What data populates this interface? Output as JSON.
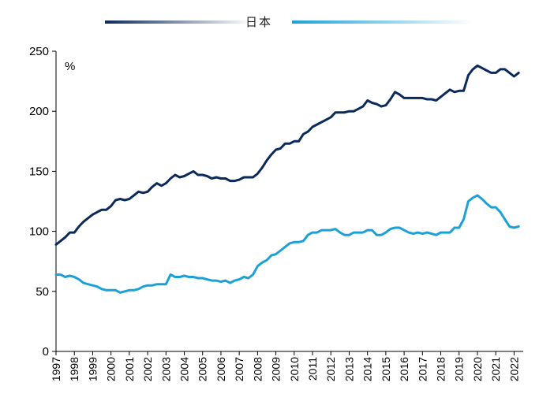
{
  "chart_data": {
    "type": "line",
    "ylim": [
      0,
      250
    ],
    "xlim": [
      1997.0,
      2022.5
    ],
    "y_ticks": [
      "0",
      "50",
      "100",
      "150",
      "200",
      "250"
    ],
    "x_ticks": [
      "1997",
      "1998",
      "1999",
      "2000",
      "2001",
      "2002",
      "2003",
      "2004",
      "2005",
      "2006",
      "2007",
      "2008",
      "2009",
      "2010",
      "2011",
      "2012",
      "2013",
      "2014",
      "2015",
      "2016",
      "2017",
      "2018",
      "2019",
      "2020",
      "2021",
      "2022"
    ],
    "unit_label": "%",
    "legend_position": "top-center",
    "grid": false,
    "series": [
      {
        "name": "",
        "color": "#0b2a5c",
        "points": [
          [
            1997.0,
            89
          ],
          [
            1997.25,
            92
          ],
          [
            1997.5,
            95
          ],
          [
            1997.75,
            99
          ],
          [
            1998.0,
            99
          ],
          [
            1998.25,
            104
          ],
          [
            1998.5,
            108
          ],
          [
            1998.75,
            111
          ],
          [
            1999.0,
            114
          ],
          [
            1999.25,
            116
          ],
          [
            1999.5,
            118
          ],
          [
            1999.75,
            118
          ],
          [
            2000.0,
            121
          ],
          [
            2000.25,
            126
          ],
          [
            2000.5,
            127
          ],
          [
            2000.75,
            126
          ],
          [
            2001.0,
            127
          ],
          [
            2001.25,
            130
          ],
          [
            2001.5,
            133
          ],
          [
            2001.75,
            132
          ],
          [
            2002.0,
            133
          ],
          [
            2002.25,
            137
          ],
          [
            2002.5,
            140
          ],
          [
            2002.75,
            138
          ],
          [
            2003.0,
            140
          ],
          [
            2003.25,
            144
          ],
          [
            2003.5,
            147
          ],
          [
            2003.75,
            145
          ],
          [
            2004.0,
            146
          ],
          [
            2004.25,
            148
          ],
          [
            2004.5,
            150
          ],
          [
            2004.75,
            147
          ],
          [
            2005.0,
            147
          ],
          [
            2005.25,
            146
          ],
          [
            2005.5,
            144
          ],
          [
            2005.75,
            145
          ],
          [
            2006.0,
            144
          ],
          [
            2006.25,
            144
          ],
          [
            2006.5,
            142
          ],
          [
            2006.75,
            142
          ],
          [
            2007.0,
            143
          ],
          [
            2007.25,
            145
          ],
          [
            2007.5,
            145
          ],
          [
            2007.75,
            145
          ],
          [
            2008.0,
            148
          ],
          [
            2008.25,
            153
          ],
          [
            2008.5,
            159
          ],
          [
            2008.75,
            164
          ],
          [
            2009.0,
            168
          ],
          [
            2009.25,
            169
          ],
          [
            2009.5,
            173
          ],
          [
            2009.75,
            173
          ],
          [
            2010.0,
            175
          ],
          [
            2010.25,
            175
          ],
          [
            2010.5,
            181
          ],
          [
            2010.75,
            183
          ],
          [
            2011.0,
            187
          ],
          [
            2011.25,
            189
          ],
          [
            2011.5,
            191
          ],
          [
            2011.75,
            193
          ],
          [
            2012.0,
            195
          ],
          [
            2012.25,
            199
          ],
          [
            2012.5,
            199
          ],
          [
            2012.75,
            199
          ],
          [
            2013.0,
            200
          ],
          [
            2013.25,
            200
          ],
          [
            2013.5,
            202
          ],
          [
            2013.75,
            204
          ],
          [
            2014.0,
            209
          ],
          [
            2014.25,
            207
          ],
          [
            2014.5,
            206
          ],
          [
            2014.75,
            204
          ],
          [
            2015.0,
            205
          ],
          [
            2015.25,
            210
          ],
          [
            2015.5,
            216
          ],
          [
            2015.75,
            214
          ],
          [
            2016.0,
            211
          ],
          [
            2016.25,
            211
          ],
          [
            2016.5,
            211
          ],
          [
            2016.75,
            211
          ],
          [
            2017.0,
            211
          ],
          [
            2017.25,
            210
          ],
          [
            2017.5,
            210
          ],
          [
            2017.75,
            209
          ],
          [
            2018.0,
            212
          ],
          [
            2018.25,
            215
          ],
          [
            2018.5,
            218
          ],
          [
            2018.75,
            216
          ],
          [
            2019.0,
            217
          ],
          [
            2019.25,
            217
          ],
          [
            2019.5,
            230
          ],
          [
            2019.75,
            235
          ],
          [
            2020.0,
            238
          ],
          [
            2020.25,
            236
          ],
          [
            2020.5,
            234
          ],
          [
            2020.75,
            232
          ],
          [
            2021.0,
            232
          ],
          [
            2021.25,
            235
          ],
          [
            2021.5,
            235
          ],
          [
            2021.75,
            232
          ],
          [
            2022.0,
            229
          ],
          [
            2022.25,
            232
          ]
        ]
      },
      {
        "name": "",
        "color": "#1ba1d8",
        "points": [
          [
            1997.0,
            64
          ],
          [
            1997.25,
            64
          ],
          [
            1997.5,
            62
          ],
          [
            1997.75,
            63
          ],
          [
            1998.0,
            62
          ],
          [
            1998.25,
            60
          ],
          [
            1998.5,
            57
          ],
          [
            1998.75,
            56
          ],
          [
            1999.0,
            55
          ],
          [
            1999.25,
            54
          ],
          [
            1999.5,
            52
          ],
          [
            1999.75,
            51
          ],
          [
            2000.0,
            51
          ],
          [
            2000.25,
            51
          ],
          [
            2000.5,
            49
          ],
          [
            2000.75,
            50
          ],
          [
            2001.0,
            51
          ],
          [
            2001.25,
            51
          ],
          [
            2001.5,
            52
          ],
          [
            2001.75,
            54
          ],
          [
            2002.0,
            55
          ],
          [
            2002.25,
            55
          ],
          [
            2002.5,
            56
          ],
          [
            2002.75,
            56
          ],
          [
            2003.0,
            56
          ],
          [
            2003.25,
            64
          ],
          [
            2003.5,
            62
          ],
          [
            2003.75,
            62
          ],
          [
            2004.0,
            63
          ],
          [
            2004.25,
            62
          ],
          [
            2004.5,
            62
          ],
          [
            2004.75,
            61
          ],
          [
            2005.0,
            61
          ],
          [
            2005.25,
            60
          ],
          [
            2005.5,
            59
          ],
          [
            2005.75,
            59
          ],
          [
            2006.0,
            58
          ],
          [
            2006.25,
            59
          ],
          [
            2006.5,
            57
          ],
          [
            2006.75,
            59
          ],
          [
            2007.0,
            60
          ],
          [
            2007.25,
            62
          ],
          [
            2007.5,
            61
          ],
          [
            2007.75,
            64
          ],
          [
            2008.0,
            71
          ],
          [
            2008.25,
            74
          ],
          [
            2008.5,
            76
          ],
          [
            2008.75,
            80
          ],
          [
            2009.0,
            81
          ],
          [
            2009.25,
            84
          ],
          [
            2009.5,
            87
          ],
          [
            2009.75,
            90
          ],
          [
            2010.0,
            91
          ],
          [
            2010.25,
            91
          ],
          [
            2010.5,
            92
          ],
          [
            2010.75,
            97
          ],
          [
            2011.0,
            99
          ],
          [
            2011.25,
            99
          ],
          [
            2011.5,
            101
          ],
          [
            2011.75,
            101
          ],
          [
            2012.0,
            101
          ],
          [
            2012.25,
            102
          ],
          [
            2012.5,
            99
          ],
          [
            2012.75,
            97
          ],
          [
            2013.0,
            97
          ],
          [
            2013.25,
            99
          ],
          [
            2013.5,
            99
          ],
          [
            2013.75,
            99
          ],
          [
            2014.0,
            101
          ],
          [
            2014.25,
            101
          ],
          [
            2014.5,
            97
          ],
          [
            2014.75,
            97
          ],
          [
            2015.0,
            99
          ],
          [
            2015.25,
            102
          ],
          [
            2015.5,
            103
          ],
          [
            2015.75,
            103
          ],
          [
            2016.0,
            101
          ],
          [
            2016.25,
            99
          ],
          [
            2016.5,
            98
          ],
          [
            2016.75,
            99
          ],
          [
            2017.0,
            98
          ],
          [
            2017.25,
            99
          ],
          [
            2017.5,
            98
          ],
          [
            2017.75,
            97
          ],
          [
            2018.0,
            99
          ],
          [
            2018.25,
            99
          ],
          [
            2018.5,
            99
          ],
          [
            2018.75,
            103
          ],
          [
            2019.0,
            103
          ],
          [
            2019.25,
            110
          ],
          [
            2019.5,
            125
          ],
          [
            2019.75,
            128
          ],
          [
            2020.0,
            130
          ],
          [
            2020.25,
            127
          ],
          [
            2020.5,
            123
          ],
          [
            2020.75,
            120
          ],
          [
            2021.0,
            120
          ],
          [
            2021.25,
            116
          ],
          [
            2021.5,
            110
          ],
          [
            2021.75,
            104
          ],
          [
            2022.0,
            103
          ],
          [
            2022.25,
            104
          ]
        ]
      }
    ],
    "legend_labels": [
      "日本"
    ]
  }
}
